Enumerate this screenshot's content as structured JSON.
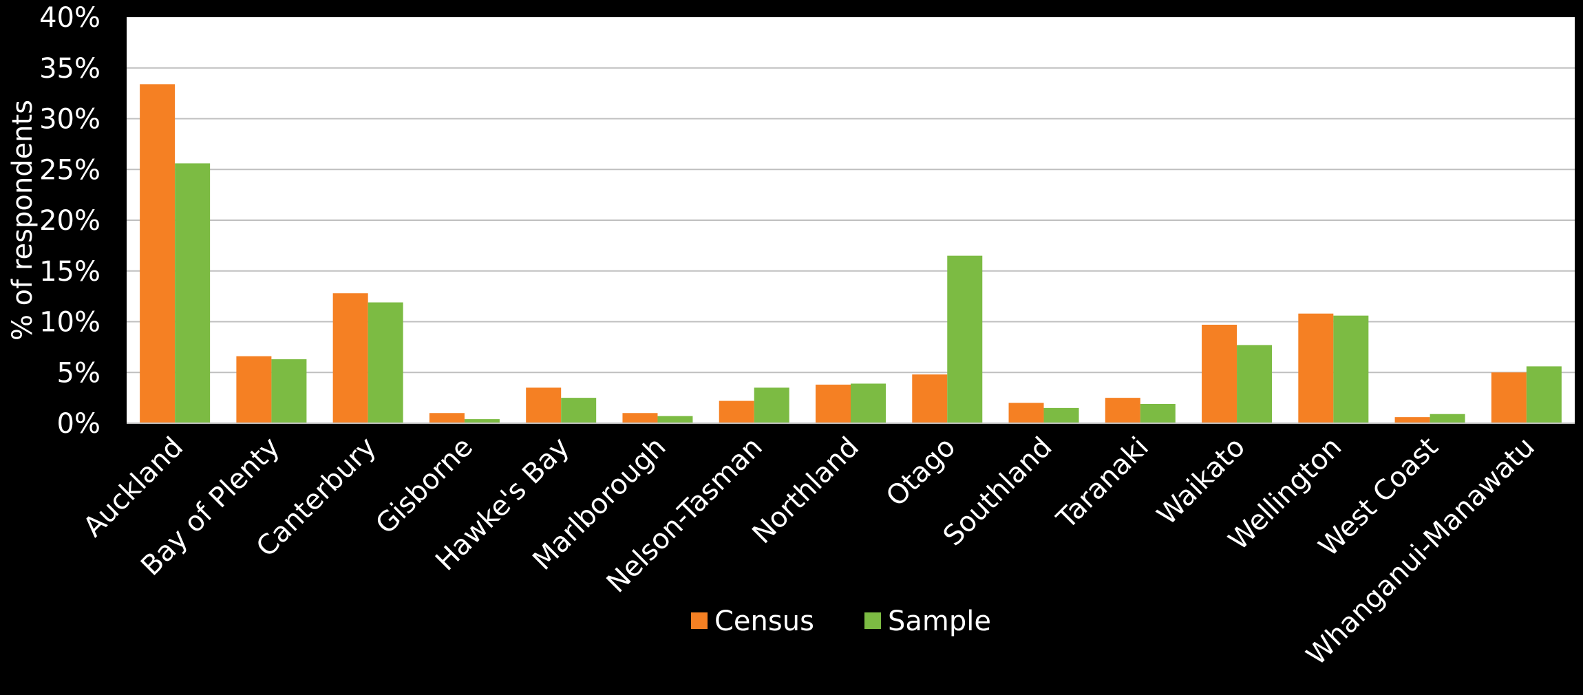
{
  "chart_data": {
    "type": "bar",
    "ylabel": "% of respondents",
    "ylim": [
      0,
      40
    ],
    "y_tick_labels": [
      "0%",
      "5%",
      "10%",
      "15%",
      "20%",
      "25%",
      "30%",
      "35%",
      "40%"
    ],
    "grid": true,
    "legend_position": "bottom",
    "categories": [
      "Auckland",
      "Bay of Plenty",
      "Canterbury",
      "Gisborne",
      "Hawke's Bay",
      "Marlborough",
      "Nelson-Tasman",
      "Northland",
      "Otago",
      "Southland",
      "Taranaki",
      "Waikato",
      "Wellington",
      "West Coast",
      "Whanganui-Manawatu"
    ],
    "series": [
      {
        "name": "Census",
        "color": "#F58023",
        "values": [
          33.4,
          6.6,
          12.8,
          1.0,
          3.5,
          1.0,
          2.2,
          3.8,
          4.8,
          2.0,
          2.5,
          9.7,
          10.8,
          0.6,
          5.0
        ]
      },
      {
        "name": "Sample",
        "color": "#7CBB43",
        "values": [
          25.6,
          6.3,
          11.9,
          0.4,
          2.5,
          0.7,
          3.5,
          3.9,
          16.5,
          1.5,
          1.9,
          7.7,
          10.6,
          0.9,
          5.6
        ]
      }
    ]
  }
}
